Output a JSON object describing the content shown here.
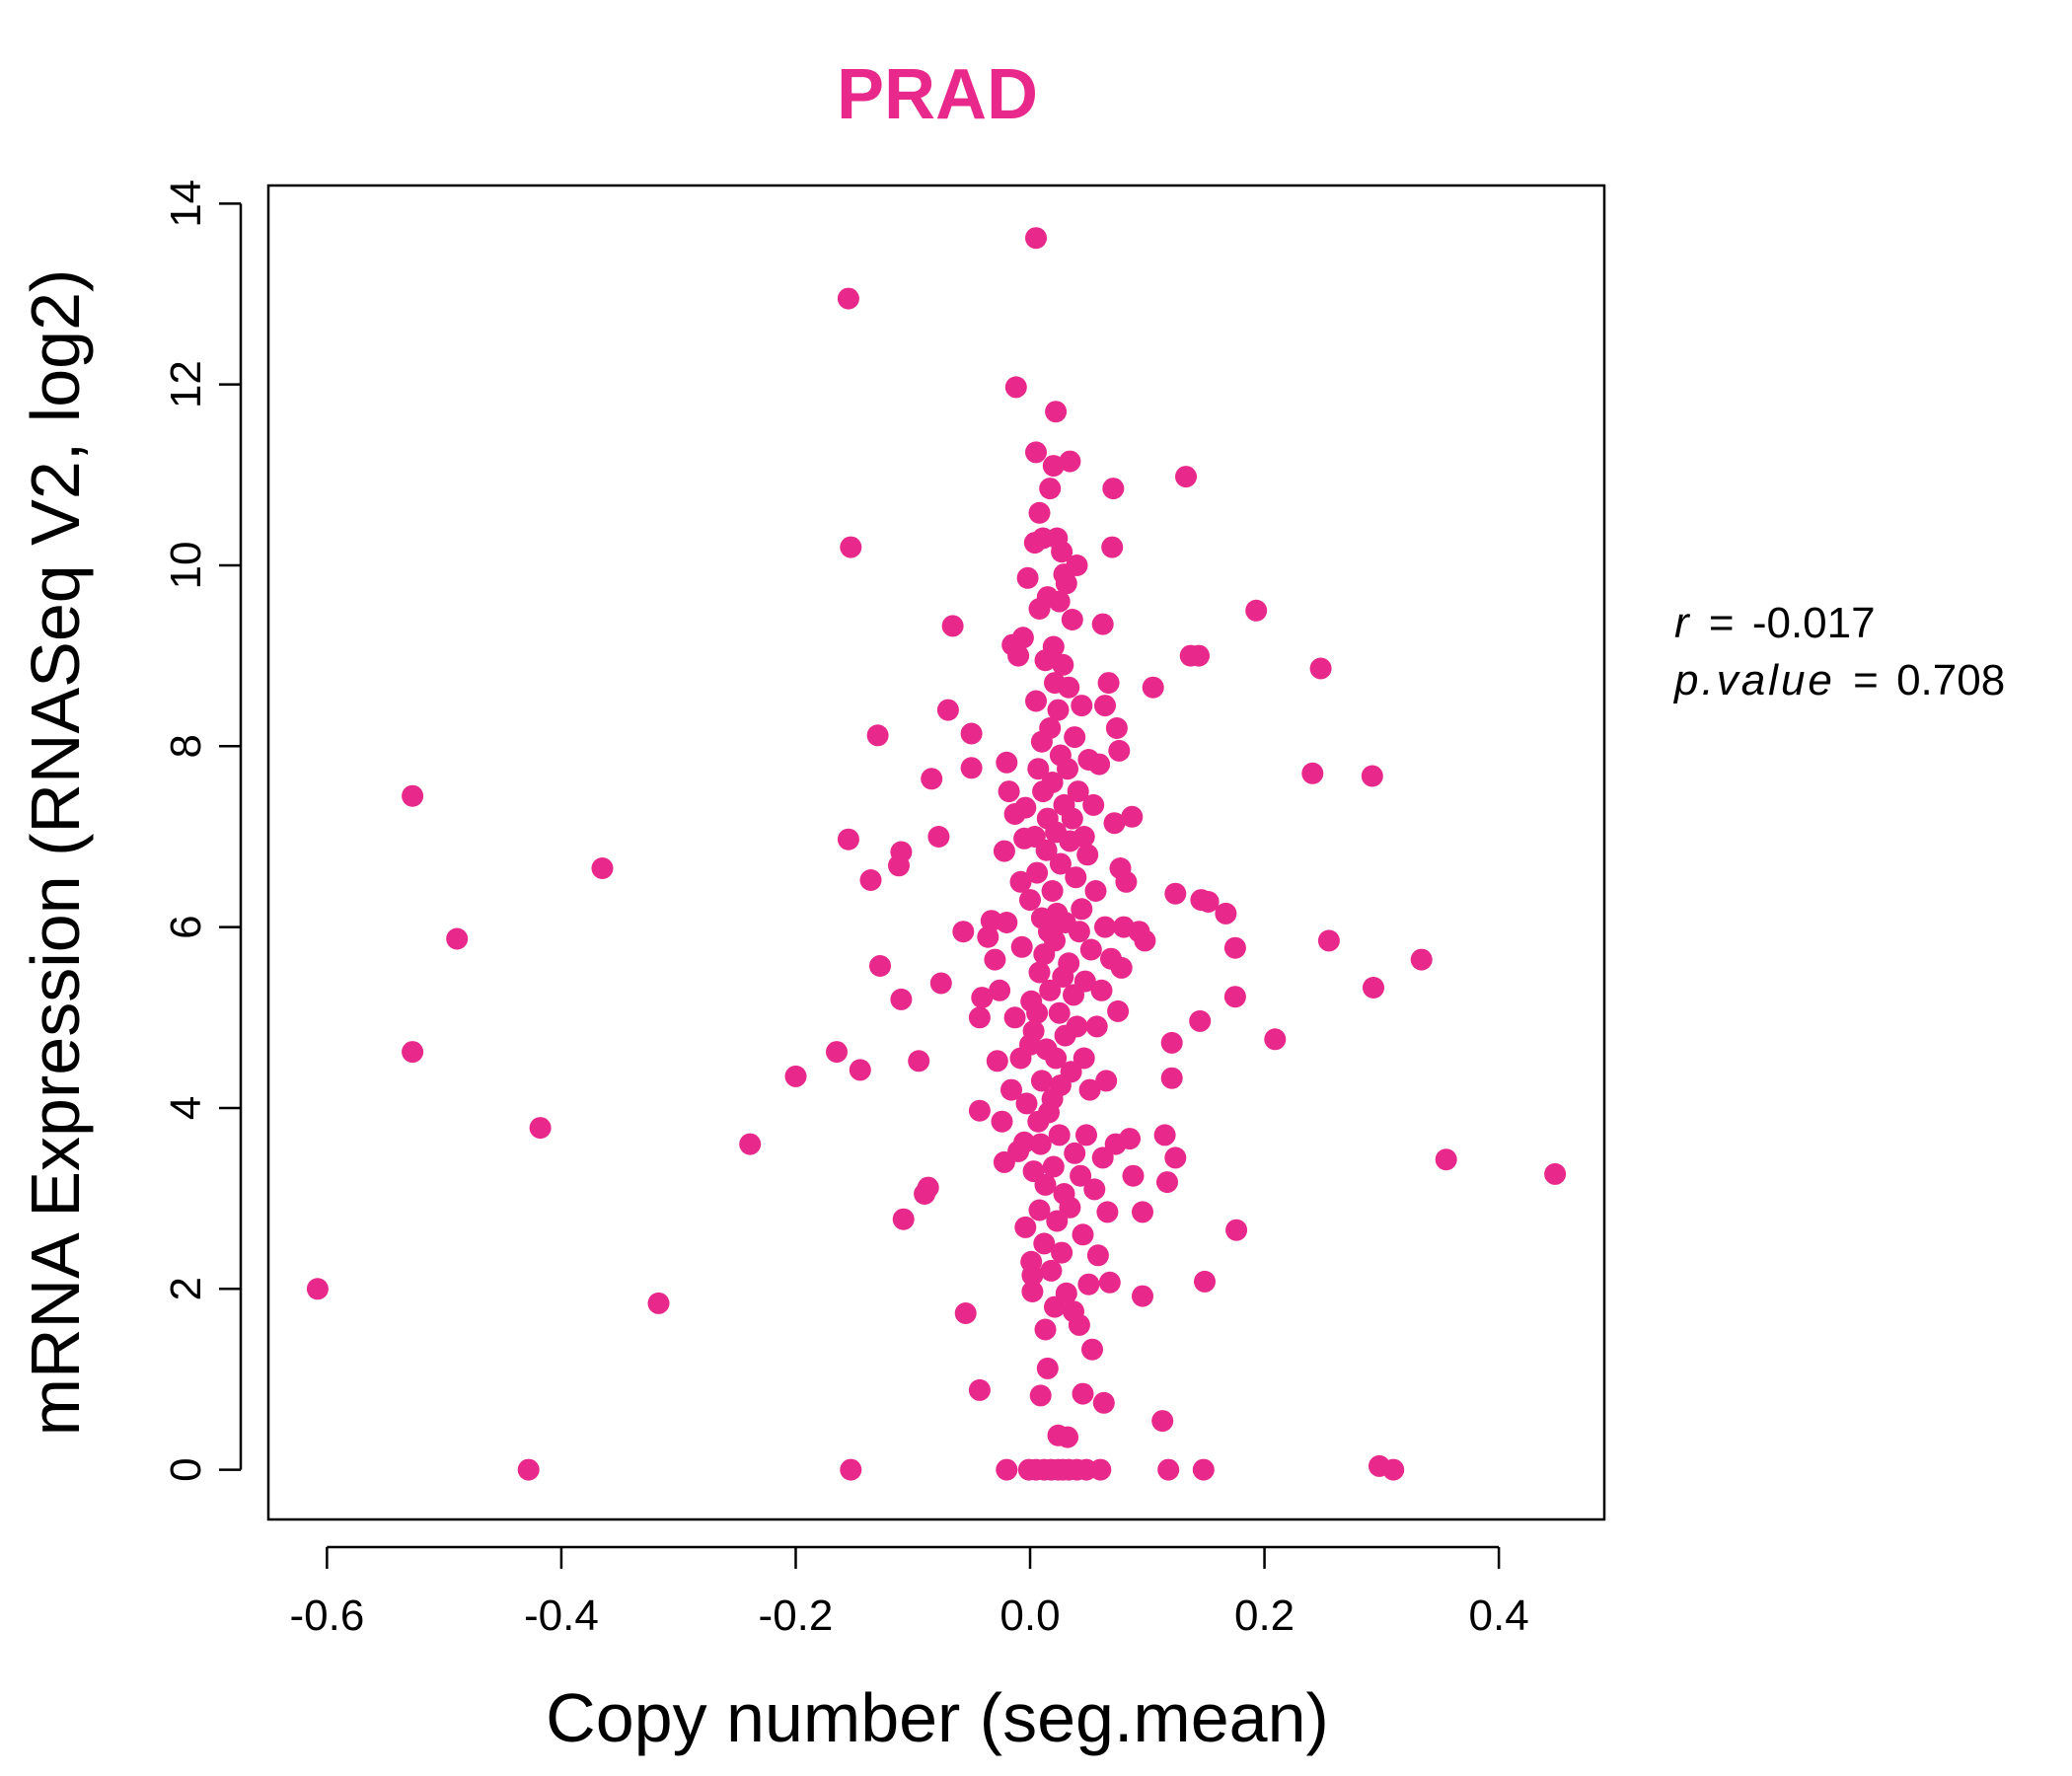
{
  "chart_data": {
    "type": "scatter",
    "title": "PRAD",
    "xlabel": "Copy number (seg.mean)",
    "ylabel": "mRNA Expression (RNASeq V2, log2)",
    "xlim": [
      -0.65,
      0.49
    ],
    "ylim": [
      -0.55,
      14.2
    ],
    "xticks": [
      -0.6,
      -0.4,
      -0.2,
      0.0,
      0.2,
      0.4
    ],
    "xtick_labels": [
      "-0.6",
      "-0.4",
      "-0.2",
      "0.0",
      "0.2",
      "0.4"
    ],
    "yticks": [
      0,
      2,
      4,
      6,
      8,
      10,
      12,
      14
    ],
    "ytick_labels": [
      "0",
      "2",
      "4",
      "6",
      "8",
      "10",
      "12",
      "14"
    ],
    "point_color": "#E8288A",
    "title_color": "#E8288A",
    "stats": {
      "r_label": "r",
      "r_value": "-0.017",
      "p_label": "p.value",
      "p_value": "0.708"
    },
    "points": [
      [
        -0.608,
        2.0
      ],
      [
        -0.527,
        7.45
      ],
      [
        -0.527,
        4.62
      ],
      [
        -0.489,
        5.87
      ],
      [
        -0.428,
        0.0
      ],
      [
        -0.418,
        3.78
      ],
      [
        -0.365,
        6.65
      ],
      [
        -0.317,
        1.84
      ],
      [
        -0.239,
        3.6
      ],
      [
        -0.2,
        4.35
      ],
      [
        -0.165,
        4.62
      ],
      [
        -0.155,
        12.95
      ],
      [
        -0.153,
        10.2
      ],
      [
        -0.155,
        6.97
      ],
      [
        -0.153,
        0.0
      ],
      [
        -0.145,
        4.42
      ],
      [
        -0.136,
        6.52
      ],
      [
        -0.13,
        8.12
      ],
      [
        -0.128,
        5.57
      ],
      [
        -0.112,
        6.68
      ],
      [
        -0.11,
        6.83
      ],
      [
        -0.11,
        5.2
      ],
      [
        -0.108,
        2.77
      ],
      [
        -0.095,
        4.52
      ],
      [
        -0.09,
        3.05
      ],
      [
        -0.087,
        3.12
      ],
      [
        -0.084,
        7.64
      ],
      [
        -0.078,
        7.0
      ],
      [
        -0.076,
        5.38
      ],
      [
        -0.07,
        8.4
      ],
      [
        -0.066,
        9.33
      ],
      [
        -0.057,
        5.95
      ],
      [
        -0.055,
        1.73
      ],
      [
        -0.05,
        8.14
      ],
      [
        -0.05,
        7.76
      ],
      [
        -0.043,
        0.88
      ],
      [
        -0.043,
        3.97
      ],
      [
        -0.043,
        5.0
      ],
      [
        -0.041,
        5.22
      ],
      [
        -0.036,
        5.89
      ],
      [
        -0.033,
        6.07
      ],
      [
        -0.03,
        5.64
      ],
      [
        -0.028,
        4.52
      ],
      [
        -0.026,
        5.3
      ],
      [
        -0.024,
        3.85
      ],
      [
        -0.022,
        3.4
      ],
      [
        -0.022,
        6.84
      ],
      [
        -0.02,
        6.05
      ],
      [
        -0.02,
        7.82
      ],
      [
        -0.02,
        0.0
      ],
      [
        -0.018,
        7.5
      ],
      [
        -0.016,
        4.2
      ],
      [
        -0.015,
        9.12
      ],
      [
        -0.013,
        5.0
      ],
      [
        -0.013,
        7.25
      ],
      [
        -0.012,
        11.97
      ],
      [
        -0.01,
        3.52
      ],
      [
        -0.01,
        9.0
      ],
      [
        -0.008,
        6.5
      ],
      [
        -0.008,
        4.55
      ],
      [
        -0.007,
        5.78
      ],
      [
        -0.006,
        9.2
      ],
      [
        -0.005,
        3.62
      ],
      [
        -0.005,
        6.98
      ],
      [
        -0.004,
        7.32
      ],
      [
        -0.004,
        2.68
      ],
      [
        -0.003,
        4.05
      ],
      [
        -0.002,
        9.86
      ],
      [
        -0.001,
        0.0
      ],
      [
        0.0,
        6.3
      ],
      [
        0.0,
        4.7
      ],
      [
        0.001,
        5.18
      ],
      [
        0.001,
        2.3
      ],
      [
        0.002,
        1.97
      ],
      [
        0.002,
        2.15
      ],
      [
        0.003,
        3.3
      ],
      [
        0.003,
        4.85
      ],
      [
        0.004,
        10.25
      ],
      [
        0.004,
        7.0
      ],
      [
        0.005,
        0.0
      ],
      [
        0.005,
        13.62
      ],
      [
        0.005,
        11.25
      ],
      [
        0.005,
        8.5
      ],
      [
        0.006,
        5.05
      ],
      [
        0.006,
        6.6
      ],
      [
        0.007,
        3.85
      ],
      [
        0.007,
        7.75
      ],
      [
        0.008,
        10.58
      ],
      [
        0.008,
        9.52
      ],
      [
        0.008,
        5.5
      ],
      [
        0.008,
        2.87
      ],
      [
        0.009,
        0.82
      ],
      [
        0.009,
        3.6
      ],
      [
        0.01,
        8.05
      ],
      [
        0.01,
        6.1
      ],
      [
        0.01,
        4.3
      ],
      [
        0.011,
        10.3
      ],
      [
        0.011,
        7.5
      ],
      [
        0.012,
        5.7
      ],
      [
        0.012,
        2.5
      ],
      [
        0.012,
        0.0
      ],
      [
        0.013,
        1.55
      ],
      [
        0.013,
        8.95
      ],
      [
        0.013,
        3.15
      ],
      [
        0.014,
        6.85
      ],
      [
        0.014,
        4.65
      ],
      [
        0.015,
        9.65
      ],
      [
        0.015,
        7.2
      ],
      [
        0.015,
        1.12
      ],
      [
        0.016,
        5.95
      ],
      [
        0.016,
        3.95
      ],
      [
        0.017,
        10.85
      ],
      [
        0.017,
        8.2
      ],
      [
        0.017,
        5.3
      ],
      [
        0.018,
        2.2
      ],
      [
        0.018,
        0.0
      ],
      [
        0.019,
        7.6
      ],
      [
        0.019,
        6.4
      ],
      [
        0.019,
        4.1
      ],
      [
        0.02,
        11.1
      ],
      [
        0.02,
        9.1
      ],
      [
        0.02,
        3.35
      ],
      [
        0.021,
        8.7
      ],
      [
        0.021,
        5.85
      ],
      [
        0.021,
        1.8
      ],
      [
        0.022,
        11.7
      ],
      [
        0.022,
        7.05
      ],
      [
        0.022,
        4.55
      ],
      [
        0.023,
        10.3
      ],
      [
        0.023,
        6.15
      ],
      [
        0.023,
        2.75
      ],
      [
        0.024,
        8.4
      ],
      [
        0.024,
        0.38
      ],
      [
        0.024,
        0.0
      ],
      [
        0.025,
        9.6
      ],
      [
        0.025,
        5.05
      ],
      [
        0.025,
        3.7
      ],
      [
        0.026,
        7.9
      ],
      [
        0.026,
        6.7
      ],
      [
        0.026,
        4.25
      ],
      [
        0.027,
        10.15
      ],
      [
        0.027,
        2.4
      ],
      [
        0.028,
        8.9
      ],
      [
        0.028,
        5.45
      ],
      [
        0.028,
        0.0
      ],
      [
        0.029,
        9.9
      ],
      [
        0.029,
        7.35
      ],
      [
        0.029,
        3.05
      ],
      [
        0.03,
        6.05
      ],
      [
        0.03,
        4.8
      ],
      [
        0.031,
        9.8
      ],
      [
        0.031,
        1.95
      ],
      [
        0.032,
        7.75
      ],
      [
        0.032,
        0.36
      ],
      [
        0.033,
        8.65
      ],
      [
        0.033,
        5.6
      ],
      [
        0.033,
        0.0
      ],
      [
        0.034,
        11.15
      ],
      [
        0.034,
        6.95
      ],
      [
        0.034,
        2.9
      ],
      [
        0.035,
        4.4
      ],
      [
        0.036,
        9.4
      ],
      [
        0.036,
        7.2
      ],
      [
        0.037,
        5.25
      ],
      [
        0.037,
        1.75
      ],
      [
        0.038,
        8.1
      ],
      [
        0.038,
        3.5
      ],
      [
        0.039,
        6.55
      ],
      [
        0.04,
        10.0
      ],
      [
        0.04,
        4.9
      ],
      [
        0.04,
        0.0
      ],
      [
        0.041,
        7.5
      ],
      [
        0.042,
        1.6
      ],
      [
        0.042,
        5.95
      ],
      [
        0.043,
        3.25
      ],
      [
        0.044,
        8.45
      ],
      [
        0.044,
        6.2
      ],
      [
        0.045,
        2.6
      ],
      [
        0.045,
        0.84
      ],
      [
        0.046,
        7.0
      ],
      [
        0.046,
        4.55
      ],
      [
        0.047,
        5.4
      ],
      [
        0.048,
        3.7
      ],
      [
        0.048,
        0.0
      ],
      [
        0.049,
        6.8
      ],
      [
        0.05,
        2.05
      ],
      [
        0.05,
        7.85
      ],
      [
        0.051,
        4.2
      ],
      [
        0.052,
        5.75
      ],
      [
        0.053,
        1.33
      ],
      [
        0.054,
        7.35
      ],
      [
        0.055,
        3.1
      ],
      [
        0.056,
        6.4
      ],
      [
        0.057,
        4.9
      ],
      [
        0.058,
        2.37
      ],
      [
        0.059,
        7.8
      ],
      [
        0.06,
        0.0
      ],
      [
        0.061,
        5.3
      ],
      [
        0.062,
        9.35
      ],
      [
        0.062,
        3.45
      ],
      [
        0.063,
        0.74
      ],
      [
        0.064,
        6.0
      ],
      [
        0.064,
        8.45
      ],
      [
        0.065,
        4.3
      ],
      [
        0.066,
        2.85
      ],
      [
        0.067,
        8.7
      ],
      [
        0.068,
        2.07
      ],
      [
        0.069,
        5.65
      ],
      [
        0.07,
        10.2
      ],
      [
        0.071,
        10.85
      ],
      [
        0.072,
        7.15
      ],
      [
        0.073,
        3.6
      ],
      [
        0.074,
        8.2
      ],
      [
        0.075,
        5.07
      ],
      [
        0.076,
        7.95
      ],
      [
        0.077,
        6.65
      ],
      [
        0.078,
        5.55
      ],
      [
        0.08,
        6.0
      ],
      [
        0.082,
        6.5
      ],
      [
        0.085,
        3.66
      ],
      [
        0.087,
        7.22
      ],
      [
        0.088,
        3.25
      ],
      [
        0.093,
        5.95
      ],
      [
        0.096,
        2.85
      ],
      [
        0.096,
        1.92
      ],
      [
        0.098,
        5.85
      ],
      [
        0.105,
        8.65
      ],
      [
        0.113,
        0.54
      ],
      [
        0.115,
        3.7
      ],
      [
        0.117,
        3.18
      ],
      [
        0.118,
        0.0
      ],
      [
        0.121,
        4.72
      ],
      [
        0.121,
        4.33
      ],
      [
        0.124,
        6.37
      ],
      [
        0.124,
        3.45
      ],
      [
        0.133,
        10.98
      ],
      [
        0.137,
        9.0
      ],
      [
        0.144,
        9.0
      ],
      [
        0.145,
        4.96
      ],
      [
        0.146,
        6.3
      ],
      [
        0.148,
        0.0
      ],
      [
        0.149,
        2.08
      ],
      [
        0.152,
        6.28
      ],
      [
        0.167,
        6.15
      ],
      [
        0.175,
        5.77
      ],
      [
        0.175,
        5.23
      ],
      [
        0.176,
        2.65
      ],
      [
        0.193,
        9.5
      ],
      [
        0.209,
        4.76
      ],
      [
        0.241,
        7.7
      ],
      [
        0.248,
        8.86
      ],
      [
        0.255,
        5.85
      ],
      [
        0.292,
        7.67
      ],
      [
        0.293,
        5.33
      ],
      [
        0.298,
        0.04
      ],
      [
        0.31,
        0.0
      ],
      [
        0.334,
        5.64
      ],
      [
        0.355,
        3.43
      ],
      [
        0.448,
        3.27
      ]
    ]
  }
}
